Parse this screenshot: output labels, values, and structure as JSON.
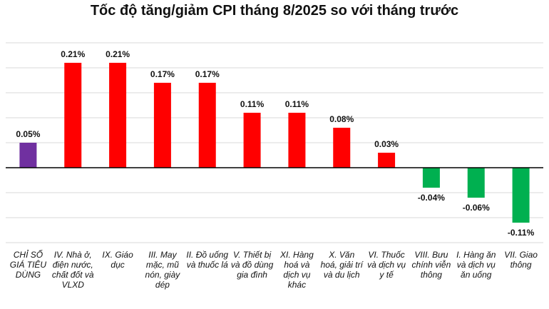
{
  "chart_data": {
    "type": "bar",
    "title": "Tốc độ tăng/giảm CPI tháng 8/2025 so với tháng trước",
    "categories": [
      "CHỈ SỐ GIÁ TIÊU DÙNG",
      "IV. Nhà ở, điện nước, chất đốt và VLXD",
      "IX. Giáo dục",
      "III. May mặc, mũ nón, giày dép",
      "II. Đồ uống và thuốc lá",
      "V. Thiết bị và đồ dùng gia đình",
      "XI. Hàng hoá và dịch vụ khác",
      "X. Văn hoá, giải trí và du lịch",
      "VI. Thuốc và dịch vụ y tế",
      "VIII. Bưu chính viễn thông",
      "I. Hàng ăn và dịch vụ ăn uống",
      "VII. Giao thông"
    ],
    "values": [
      0.05,
      0.21,
      0.21,
      0.17,
      0.17,
      0.11,
      0.11,
      0.08,
      0.03,
      -0.04,
      -0.06,
      -0.11
    ],
    "data_labels": [
      "0.05%",
      "0.21%",
      "0.21%",
      "0.17%",
      "0.17%",
      "0.11%",
      "0.11%",
      "0.08%",
      "0.03%",
      "-0.04%",
      "-0.06%",
      "-0.11%"
    ],
    "ylim": [
      -0.15,
      0.25
    ],
    "grid": true,
    "xlabel": "",
    "ylabel": "",
    "colors": {
      "total": "#7030A0",
      "positive": "#FF0000",
      "negative": "#00B050",
      "grid": "#D9D9D9",
      "axis": "#000000"
    }
  }
}
